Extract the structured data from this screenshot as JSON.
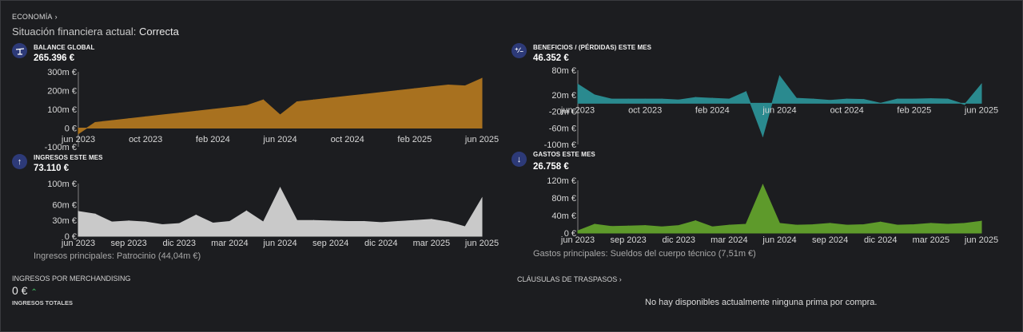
{
  "header": {
    "breadcrumb": "ECONOMÍA",
    "status_label": "Situación financiera actual:",
    "status_value": "Correcta"
  },
  "panels": {
    "balance": {
      "title": "BALANCE GLOBAL",
      "value": "265.396 €",
      "icon": "balance-scale-icon"
    },
    "profit": {
      "title": "BENEFICIOS / (PÉRDIDAS) ESTE MES",
      "value": "46.352 €",
      "icon": "plus-minus-icon"
    },
    "income": {
      "title": "INGRESOS ESTE MES",
      "value": "73.110 €",
      "icon": "arrow-up-icon",
      "footnote": "Ingresos principales: Patrocinio (44,04m €)"
    },
    "expenses": {
      "title": "GASTOS ESTE MES",
      "value": "26.758 €",
      "icon": "arrow-down-icon",
      "footnote": "Gastos principales: Sueldos del cuerpo técnico (7,51m €)"
    }
  },
  "merch": {
    "title": "INGRESOS POR MERCHANDISING",
    "value": "0 €",
    "total_label": "INGRESOS TOTALES"
  },
  "transfers": {
    "title": "CLÁUSULAS DE TRASPASOS",
    "message": "No hay disponibles actualmente ninguna prima por compra."
  },
  "colors": {
    "balance": "#a8711f",
    "profit": "#2a8a8f",
    "income": "#c9c9c9",
    "expenses": "#5e9a2b"
  },
  "chart_data": [
    {
      "type": "area",
      "title": "BALANCE GLOBAL",
      "y_ticks": [
        "300m €",
        "200m €",
        "100m €",
        "0 €",
        "-100m €"
      ],
      "ylim": [
        -100,
        300
      ],
      "x_ticks": [
        "jun 2023",
        "oct 2023",
        "feb 2024",
        "jun 2024",
        "oct 2024",
        "feb 2025",
        "jun 2025"
      ],
      "x_tick_positions": [
        0,
        4,
        8,
        12,
        16,
        20,
        24
      ],
      "values": [
        -30,
        30,
        40,
        50,
        60,
        70,
        80,
        90,
        100,
        110,
        120,
        150,
        70,
        140,
        150,
        160,
        170,
        180,
        190,
        200,
        210,
        220,
        230,
        225,
        265
      ]
    },
    {
      "type": "area",
      "title": "BENEFICIOS / (PÉRDIDAS) ESTE MES",
      "y_ticks": [
        "80m €",
        "20m €",
        "-20m €",
        "-60m €",
        "-100m €"
      ],
      "y_tick_values": [
        80,
        20,
        -20,
        -60,
        -100
      ],
      "ylim": [
        -100,
        80
      ],
      "x_ticks": [
        "jun 2023",
        "oct 2023",
        "feb 2024",
        "jun 2024",
        "oct 2024",
        "feb 2025",
        "jun 2025"
      ],
      "x_tick_positions": [
        0,
        4,
        8,
        12,
        16,
        20,
        24
      ],
      "values": [
        46,
        20,
        10,
        10,
        10,
        10,
        8,
        14,
        12,
        10,
        28,
        -80,
        66,
        12,
        10,
        7,
        10,
        9,
        0,
        10,
        10,
        11,
        10,
        -3,
        46
      ]
    },
    {
      "type": "area",
      "title": "INGRESOS ESTE MES",
      "y_ticks": [
        "100m €",
        "60m €",
        "30m €",
        "0 €"
      ],
      "y_tick_values": [
        100,
        60,
        30,
        0
      ],
      "ylim": [
        0,
        100
      ],
      "x_ticks": [
        "jun 2023",
        "sep 2023",
        "dic 2023",
        "mar 2024",
        "jun 2024",
        "sep 2024",
        "dic 2024",
        "mar 2025",
        "jun 2025"
      ],
      "x_tick_positions": [
        0,
        3,
        6,
        9,
        12,
        15,
        18,
        21,
        24
      ],
      "values": [
        47,
        42,
        27,
        29,
        27,
        22,
        24,
        40,
        25,
        28,
        48,
        27,
        92,
        30,
        30,
        29,
        28,
        28,
        26,
        28,
        30,
        32,
        27,
        18,
        72
      ]
    },
    {
      "type": "area",
      "title": "GASTOS ESTE MES",
      "y_ticks": [
        "120m €",
        "80m €",
        "40m €",
        "0 €"
      ],
      "y_tick_values": [
        120,
        80,
        40,
        0
      ],
      "ylim": [
        0,
        120
      ],
      "x_ticks": [
        "jun 2023",
        "sep 2023",
        "dic 2023",
        "mar 2024",
        "jun 2024",
        "sep 2024",
        "dic 2024",
        "mar 2025",
        "jun 2025"
      ],
      "x_tick_positions": [
        0,
        3,
        6,
        9,
        12,
        15,
        18,
        21,
        24
      ],
      "values": [
        5,
        20,
        15,
        16,
        17,
        14,
        17,
        28,
        14,
        18,
        20,
        110,
        22,
        18,
        19,
        22,
        18,
        19,
        25,
        18,
        19,
        22,
        20,
        22,
        27
      ]
    }
  ]
}
